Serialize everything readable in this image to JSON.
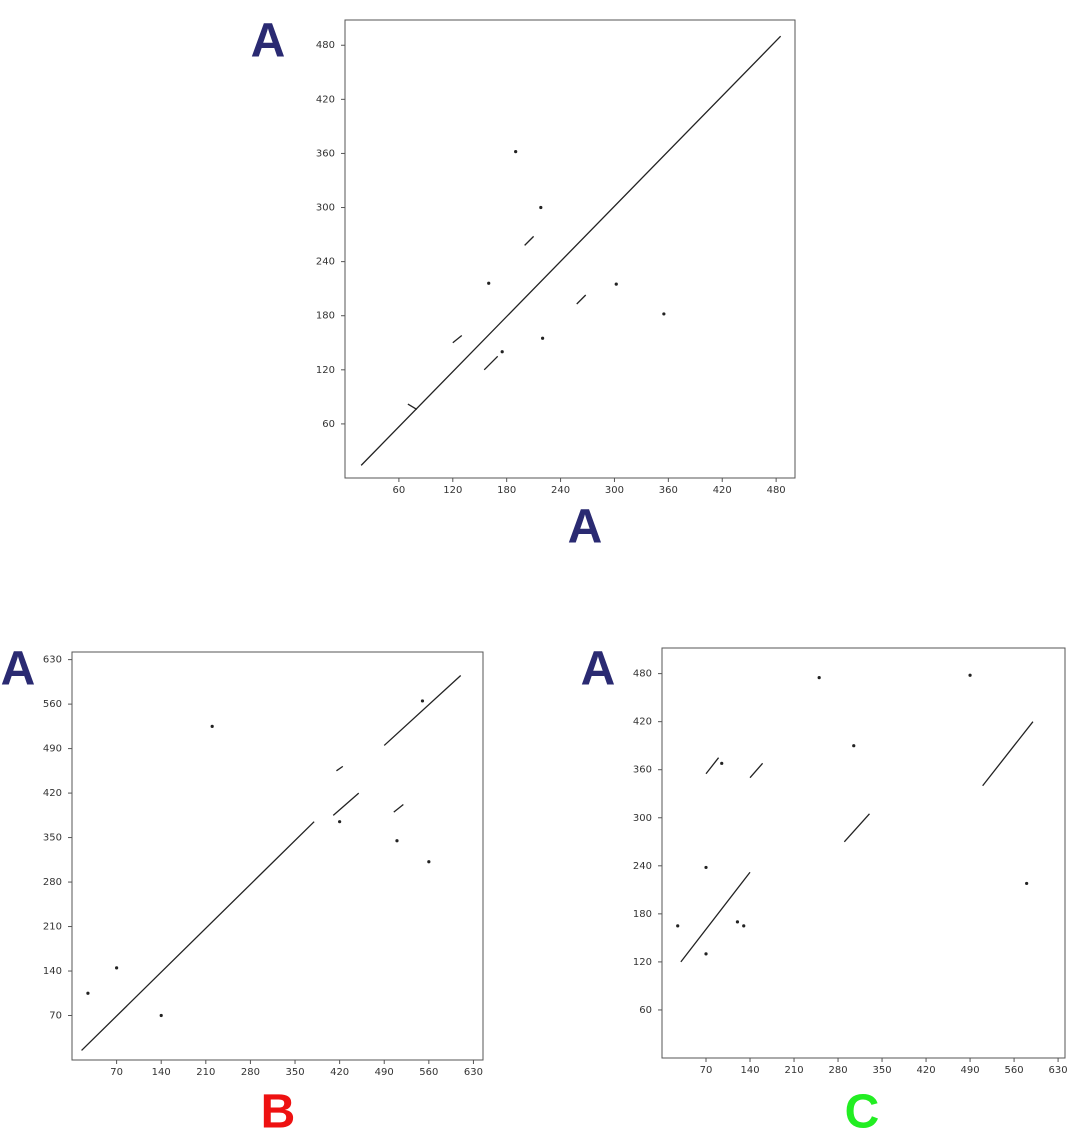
{
  "chart_data": [
    {
      "type": "line",
      "xlabel": "A",
      "ylabel": "A",
      "xlabel_color": "#2a2a72",
      "ylabel_color": "#2a2a72",
      "color": "#222222",
      "xlim": [
        0,
        501
      ],
      "ylim": [
        0,
        508
      ],
      "xticks": [
        60,
        120,
        180,
        240,
        300,
        360,
        420,
        480
      ],
      "yticks": [
        60,
        120,
        180,
        240,
        300,
        360,
        420,
        480
      ],
      "x": [
        18,
        485,
        null,
        120,
        130,
        null,
        155,
        170,
        null,
        200,
        210,
        null,
        258,
        268,
        null,
        190,
        null,
        218,
        null,
        160,
        null,
        302,
        null,
        355,
        null,
        220,
        null,
        175,
        null,
        70,
        80
      ],
      "values": [
        14,
        490,
        null,
        150,
        158,
        null,
        120,
        135,
        null,
        258,
        268,
        null,
        193,
        203,
        null,
        362,
        null,
        300,
        null,
        216,
        null,
        215,
        null,
        182,
        null,
        155,
        null,
        140,
        null,
        82,
        76
      ]
    },
    {
      "type": "line",
      "xlabel": "B",
      "ylabel": "A",
      "xlabel_color": "#ee1111",
      "ylabel_color": "#2a2a72",
      "color": "#222222",
      "xlim": [
        0,
        645
      ],
      "ylim": [
        0,
        642
      ],
      "xticks": [
        70,
        140,
        210,
        280,
        350,
        420,
        490,
        560,
        630
      ],
      "yticks": [
        70,
        140,
        210,
        280,
        350,
        420,
        490,
        560,
        630
      ],
      "x": [
        15,
        380,
        null,
        410,
        450,
        null,
        490,
        610,
        null,
        505,
        520,
        null,
        415,
        425,
        null,
        70,
        null,
        140,
        null,
        220,
        null,
        550,
        null,
        560,
        null,
        510,
        null,
        25,
        null,
        420
      ],
      "values": [
        15,
        375,
        null,
        385,
        420,
        null,
        495,
        605,
        null,
        390,
        402,
        null,
        455,
        462,
        null,
        145,
        null,
        70,
        null,
        525,
        null,
        565,
        null,
        312,
        null,
        345,
        null,
        105,
        null,
        375
      ]
    },
    {
      "type": "line",
      "xlabel": "C",
      "ylabel": "A",
      "xlabel_color": "#22ee22",
      "ylabel_color": "#2a2a72",
      "color": "#222222",
      "xlim": [
        0,
        641
      ],
      "ylim": [
        0,
        512
      ],
      "xticks": [
        70,
        140,
        210,
        280,
        350,
        420,
        490,
        560,
        630
      ],
      "yticks": [
        60,
        120,
        180,
        240,
        300,
        360,
        420,
        480
      ],
      "x": [
        30,
        140,
        null,
        70,
        90,
        null,
        140,
        160,
        null,
        290,
        330,
        null,
        510,
        590,
        null,
        25,
        null,
        70,
        null,
        70,
        null,
        120,
        null,
        130,
        null,
        95,
        null,
        250,
        null,
        305,
        null,
        490,
        null,
        580
      ],
      "values": [
        120,
        232,
        null,
        355,
        375,
        null,
        350,
        368,
        null,
        270,
        305,
        null,
        340,
        420,
        null,
        165,
        null,
        238,
        null,
        130,
        null,
        170,
        null,
        165,
        null,
        368,
        null,
        475,
        null,
        390,
        null,
        478,
        null,
        218
      ]
    }
  ]
}
